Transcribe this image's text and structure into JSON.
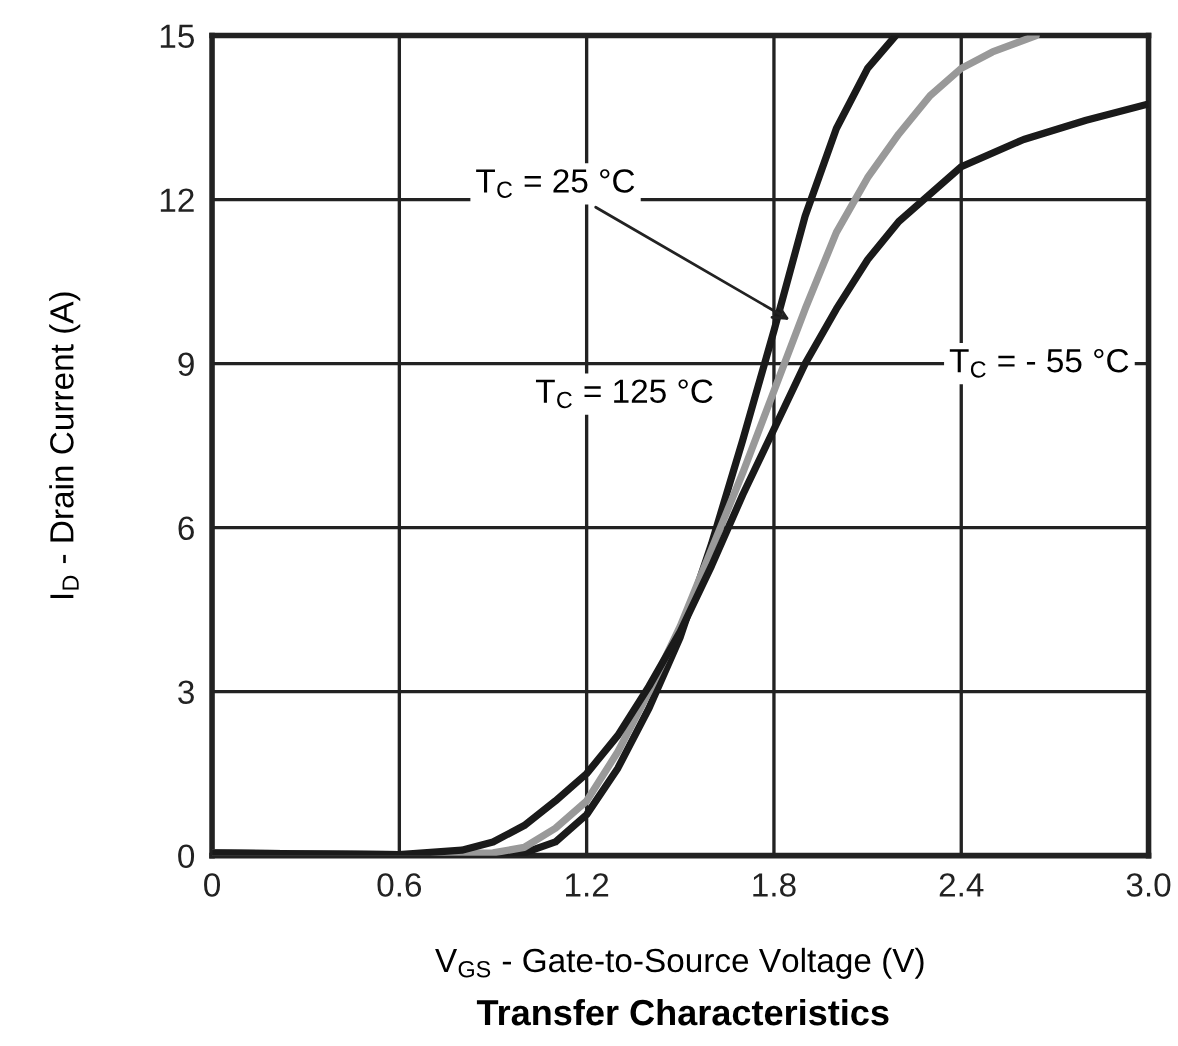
{
  "chart_data": {
    "type": "line",
    "title": "Transfer Characteristics",
    "xlabel": "V$_{GS}$ - Gate-to-Source Voltage (V)",
    "ylabel": "I$_{D}$ - Drain Current (A)",
    "series": [
      {
        "color": "#1a1a1a",
        "x": [
          0,
          0.6,
          0.9,
          1.0,
          1.1,
          1.2,
          1.3,
          1.4,
          1.5,
          1.6,
          1.7,
          1.8,
          1.9,
          2.0,
          2.1,
          2.19
        ],
        "values": [
          0.05,
          0.02,
          0.02,
          0.05,
          0.25,
          0.75,
          1.6,
          2.7,
          4.0,
          5.7,
          7.6,
          9.6,
          11.7,
          13.3,
          14.4,
          15
        ]
      },
      {
        "color": "#999999",
        "x": [
          0,
          0.6,
          0.9,
          1.0,
          1.1,
          1.2,
          1.3,
          1.4,
          1.5,
          1.6,
          1.7,
          1.8,
          1.9,
          2.0,
          2.1,
          2.2,
          2.3,
          2.4,
          2.5,
          2.64
        ],
        "values": [
          0.05,
          0.02,
          0.05,
          0.15,
          0.5,
          1.0,
          1.9,
          3.0,
          4.2,
          5.6,
          7.0,
          8.5,
          10.0,
          11.4,
          12.4,
          13.2,
          13.9,
          14.4,
          14.7,
          15
        ]
      },
      {
        "color": "#1a1a1a",
        "x": [
          0,
          0.6,
          0.8,
          0.9,
          1.0,
          1.1,
          1.2,
          1.3,
          1.4,
          1.5,
          1.6,
          1.7,
          1.8,
          1.9,
          2.0,
          2.1,
          2.2,
          2.4,
          2.6,
          2.8,
          3.0
        ],
        "values": [
          0.05,
          0.02,
          0.1,
          0.25,
          0.55,
          1.0,
          1.5,
          2.2,
          3.1,
          4.1,
          5.3,
          6.6,
          7.8,
          9.0,
          10.0,
          10.9,
          11.6,
          12.6,
          13.1,
          13.45,
          13.75
        ]
      }
    ],
    "xlim": [
      0,
      3.0
    ],
    "ylim": [
      0,
      15
    ],
    "xticks": [
      0,
      0.6,
      1.2,
      1.8,
      2.4,
      {
        "value": 3.0,
        "label": "3.0"
      }
    ],
    "yticks": [
      0,
      3,
      6,
      9,
      12,
      15
    ],
    "grid": true,
    "marker": "none",
    "line_style": "solid",
    "annotations": [
      {
        "text": "T$_{C}$ = 25 °C",
        "x": 1.85,
        "y": 9.8
      },
      "T$_{C}$ = - 55 °C",
      {
        "text": "T$_{C}$ = 125 °C",
        "x": 1.7,
        "y": 7.6
      }
    ]
  }
}
